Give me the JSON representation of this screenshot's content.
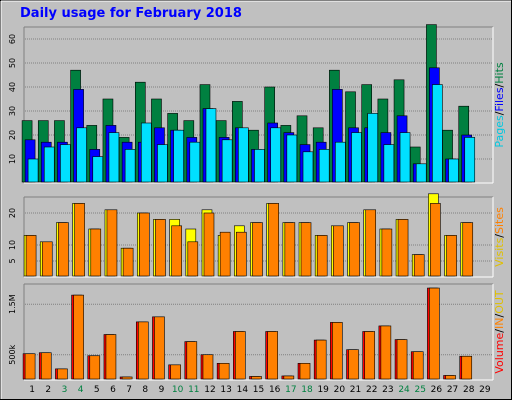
{
  "title": "Daily usage for February 2018",
  "colors": {
    "hits": "#008040",
    "files": "#0000ff",
    "pages": "#00e0ff",
    "visits": "#ffff00",
    "sites": "#ff8000",
    "kbytes": "#ff0000",
    "kbin": "#ff8000",
    "kbout": "#ffff00",
    "panel": "#c0c0c0",
    "title": "#0000ff",
    "weekend": "#008040"
  },
  "right_labels": {
    "top": [
      {
        "text": "Pages",
        "color": "#00c8e0"
      },
      {
        "text": "/",
        "color": "#000000"
      },
      {
        "text": "Files",
        "color": "#0000ff"
      },
      {
        "text": "/",
        "color": "#000000"
      },
      {
        "text": "Hits",
        "color": "#008040"
      }
    ],
    "mid": [
      {
        "text": "Visits",
        "color": "#e0c000"
      },
      {
        "text": "/",
        "color": "#000000"
      },
      {
        "text": "Sites",
        "color": "#ff8000"
      }
    ],
    "bot": [
      {
        "text": "Volume",
        "color": "#ff0000"
      },
      {
        "text": "/",
        "color": "#000000"
      },
      {
        "text": "IN",
        "color": "#ff8000"
      },
      {
        "text": "/",
        "color": "#000000"
      },
      {
        "text": "OUT",
        "color": "#e0c000"
      }
    ]
  },
  "days": [
    "1",
    "2",
    "3",
    "4",
    "5",
    "6",
    "7",
    "8",
    "9",
    "10",
    "11",
    "12",
    "13",
    "14",
    "15",
    "16",
    "17",
    "18",
    "19",
    "20",
    "21",
    "22",
    "23",
    "24",
    "25",
    "26",
    "27",
    "28",
    "29"
  ],
  "weekend_days": [
    "3",
    "4",
    "10",
    "11",
    "17",
    "18",
    "24",
    "25"
  ],
  "chart_data": [
    {
      "type": "bar",
      "ylim": [
        0,
        65
      ],
      "yticks": [
        "10",
        "20",
        "30",
        "40",
        "50",
        "60"
      ],
      "series": [
        {
          "name": "Hits",
          "values": [
            26,
            26,
            26,
            47,
            24,
            35,
            19,
            42,
            35,
            29,
            26,
            41,
            26,
            34,
            22,
            40,
            24,
            28,
            23,
            47,
            38,
            41,
            35,
            43,
            15,
            66,
            22,
            32,
            0
          ]
        },
        {
          "name": "Files",
          "values": [
            18,
            17,
            17,
            39,
            14,
            24,
            17,
            17,
            23,
            22,
            19,
            31,
            19,
            23,
            14,
            25,
            21,
            16,
            17,
            39,
            23,
            23,
            21,
            28,
            8,
            48,
            10,
            20,
            0
          ]
        },
        {
          "name": "Pages",
          "values": [
            10,
            15,
            16,
            23,
            11,
            21,
            14,
            25,
            16,
            22,
            17,
            31,
            18,
            23,
            14,
            23,
            20,
            13,
            14,
            17,
            21,
            29,
            16,
            21,
            8,
            41,
            10,
            19,
            0
          ]
        }
      ]
    },
    {
      "type": "bar",
      "ylim": [
        0,
        25
      ],
      "yticks": [
        "5",
        "10",
        "20"
      ],
      "series": [
        {
          "name": "Visits",
          "values": [
            13,
            11,
            17,
            23,
            15,
            21,
            9,
            20,
            18,
            18,
            15,
            21,
            13,
            16,
            17,
            23,
            17,
            17,
            13,
            16,
            17,
            21,
            15,
            18,
            7,
            26,
            13,
            17,
            0
          ]
        },
        {
          "name": "Sites",
          "values": [
            13,
            11,
            17,
            23,
            15,
            21,
            9,
            20,
            18,
            16,
            11,
            20,
            14,
            14,
            17,
            23,
            17,
            17,
            13,
            16,
            17,
            21,
            15,
            18,
            7,
            23,
            13,
            17,
            0
          ]
        }
      ]
    },
    {
      "type": "bar",
      "ylim": [
        0,
        1900000
      ],
      "yticks": [
        "500k",
        "1.5M"
      ],
      "series": [
        {
          "name": "Volume",
          "values": [
            520000,
            540000,
            220000,
            1680000,
            480000,
            900000,
            60000,
            1150000,
            1250000,
            300000,
            760000,
            500000,
            330000,
            960000,
            70000,
            960000,
            80000,
            330000,
            790000,
            1140000,
            600000,
            960000,
            1070000,
            800000,
            560000,
            1820000,
            90000,
            470000,
            0
          ]
        },
        {
          "name": "IN",
          "values": [
            520000,
            540000,
            220000,
            1680000,
            480000,
            900000,
            60000,
            1150000,
            1250000,
            300000,
            760000,
            500000,
            330000,
            960000,
            70000,
            960000,
            80000,
            330000,
            790000,
            1140000,
            600000,
            960000,
            1070000,
            800000,
            560000,
            1820000,
            90000,
            470000,
            0
          ]
        },
        {
          "name": "OUT",
          "values": [
            0,
            0,
            0,
            0,
            0,
            0,
            0,
            0,
            0,
            0,
            0,
            0,
            0,
            0,
            0,
            0,
            0,
            0,
            0,
            0,
            0,
            0,
            0,
            0,
            0,
            0,
            0,
            0,
            0
          ]
        }
      ]
    }
  ]
}
